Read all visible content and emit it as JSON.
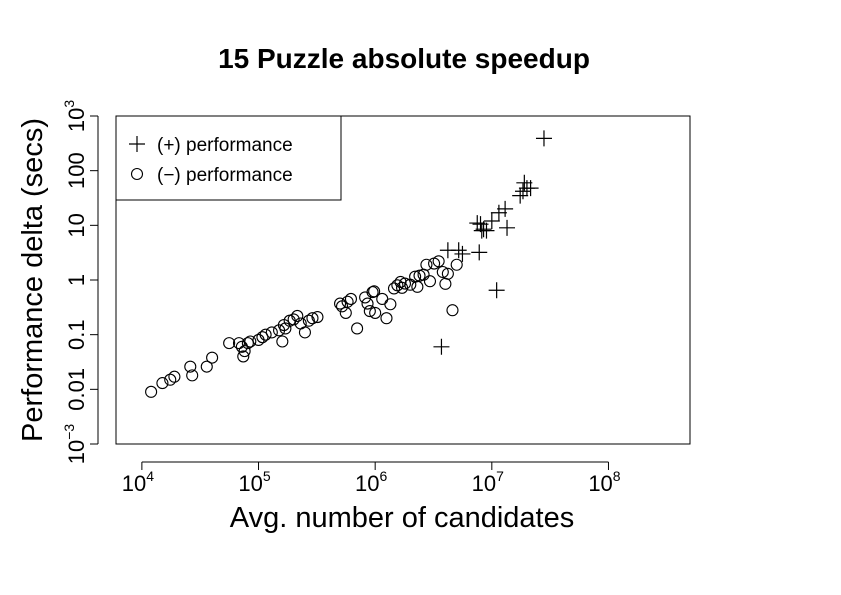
{
  "chart_data": {
    "type": "scatter",
    "title": "15 Puzzle absolute speedup",
    "xlabel": "Avg. number of candidates",
    "ylabel": "Performance delta (secs)",
    "x_scale": "log",
    "y_scale": "log",
    "xlim": [
      6000,
      500000000
    ],
    "ylim": [
      0.001,
      1000
    ],
    "x_ticks": [
      {
        "value": 10000,
        "base": "10",
        "exp": "4"
      },
      {
        "value": 100000,
        "base": "10",
        "exp": "5"
      },
      {
        "value": 1000000,
        "base": "10",
        "exp": "6"
      },
      {
        "value": 10000000,
        "base": "10",
        "exp": "7"
      },
      {
        "value": 100000000,
        "base": "10",
        "exp": "8"
      }
    ],
    "y_ticks": [
      {
        "value": 0.001,
        "base": "10",
        "exp": "−3"
      },
      {
        "value": 0.01,
        "label": "0.01"
      },
      {
        "value": 0.1,
        "label": "0.1"
      },
      {
        "value": 1,
        "label": "1"
      },
      {
        "value": 10,
        "label": "10"
      },
      {
        "value": 100,
        "label": "100"
      },
      {
        "value": 1000,
        "base": "10",
        "exp": "3"
      }
    ],
    "grid": false,
    "legend": {
      "position": "top-left",
      "entries": [
        {
          "marker": "plus",
          "label": "(+) performance"
        },
        {
          "marker": "circle",
          "label": "(−) performance"
        }
      ]
    },
    "series": [
      {
        "name": "(+) performance",
        "marker": "plus",
        "points": [
          [
            3700000,
            0.06
          ],
          [
            4200000,
            3.5
          ],
          [
            5200000,
            3.5
          ],
          [
            5600000,
            3
          ],
          [
            7500000,
            11
          ],
          [
            8000000,
            10.5
          ],
          [
            7800000,
            3.2
          ],
          [
            8200000,
            8
          ],
          [
            8500000,
            8.5
          ],
          [
            9000000,
            8
          ],
          [
            10000000,
            12
          ],
          [
            11000000,
            0.65
          ],
          [
            11500000,
            17
          ],
          [
            13000000,
            20
          ],
          [
            13500000,
            9
          ],
          [
            17500000,
            35
          ],
          [
            18500000,
            42
          ],
          [
            19000000,
            60
          ],
          [
            20000000,
            48
          ],
          [
            21500000,
            48
          ],
          [
            28000000,
            390
          ]
        ]
      },
      {
        "name": "(−) performance",
        "marker": "circle",
        "points": [
          [
            12000,
            0.009
          ],
          [
            15000,
            0.013
          ],
          [
            17500,
            0.015
          ],
          [
            19000,
            0.017
          ],
          [
            26000,
            0.026
          ],
          [
            27000,
            0.018
          ],
          [
            36000,
            0.026
          ],
          [
            40000,
            0.038
          ],
          [
            56000,
            0.07
          ],
          [
            68000,
            0.07
          ],
          [
            72000,
            0.06
          ],
          [
            74000,
            0.04
          ],
          [
            76000,
            0.05
          ],
          [
            81000,
            0.07
          ],
          [
            85000,
            0.075
          ],
          [
            100000,
            0.08
          ],
          [
            108000,
            0.09
          ],
          [
            115000,
            0.1
          ],
          [
            130000,
            0.11
          ],
          [
            150000,
            0.12
          ],
          [
            160000,
            0.075
          ],
          [
            165000,
            0.15
          ],
          [
            170000,
            0.13
          ],
          [
            185000,
            0.18
          ],
          [
            200000,
            0.19
          ],
          [
            215000,
            0.22
          ],
          [
            230000,
            0.16
          ],
          [
            250000,
            0.11
          ],
          [
            270000,
            0.18
          ],
          [
            290000,
            0.2
          ],
          [
            320000,
            0.21
          ],
          [
            500000,
            0.37
          ],
          [
            520000,
            0.33
          ],
          [
            560000,
            0.25
          ],
          [
            580000,
            0.4
          ],
          [
            620000,
            0.45
          ],
          [
            700000,
            0.13
          ],
          [
            820000,
            0.48
          ],
          [
            860000,
            0.37
          ],
          [
            900000,
            0.27
          ],
          [
            950000,
            0.6
          ],
          [
            980000,
            0.62
          ],
          [
            1000000,
            0.25
          ],
          [
            1150000,
            0.45
          ],
          [
            1250000,
            0.2
          ],
          [
            1350000,
            0.36
          ],
          [
            1450000,
            0.7
          ],
          [
            1550000,
            0.8
          ],
          [
            1650000,
            0.92
          ],
          [
            1700000,
            0.72
          ],
          [
            1800000,
            0.86
          ],
          [
            2000000,
            0.82
          ],
          [
            2200000,
            1.15
          ],
          [
            2300000,
            0.75
          ],
          [
            2400000,
            1.2
          ],
          [
            2600000,
            1.25
          ],
          [
            2750000,
            1.9
          ],
          [
            2950000,
            0.95
          ],
          [
            3200000,
            2.0
          ],
          [
            3500000,
            2.2
          ],
          [
            3800000,
            1.4
          ],
          [
            4000000,
            0.85
          ],
          [
            4200000,
            1.3
          ],
          [
            4600000,
            0.28
          ],
          [
            5000000,
            1.9
          ]
        ]
      }
    ]
  }
}
